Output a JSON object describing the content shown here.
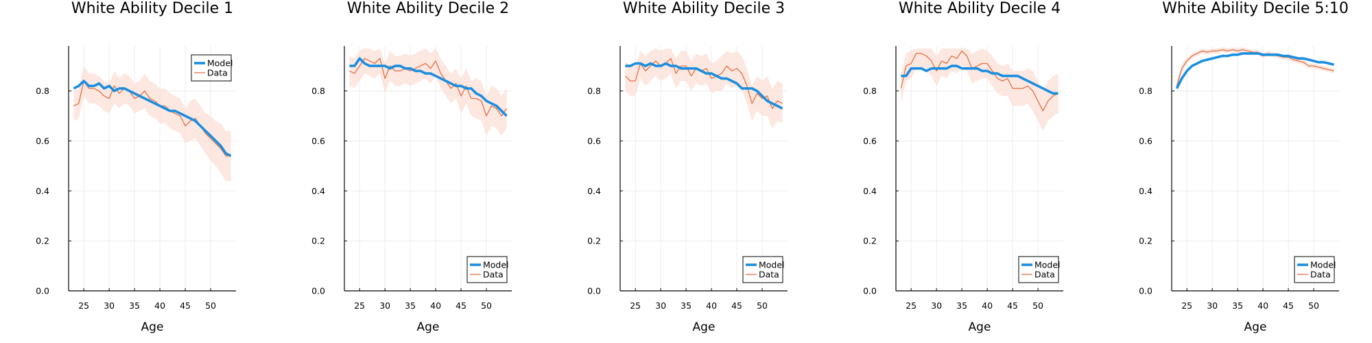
{
  "colors": {
    "model": "#1a8ee0",
    "data": "#e26f46",
    "band": "#fbe0d6",
    "grid": "#ececec",
    "axis": "#000000"
  },
  "chart_data": [
    {
      "type": "line",
      "title": "White Ability Decile 1",
      "xlabel": "Age",
      "ylabel": "",
      "xlim": [
        22,
        55
      ],
      "ylim": [
        0,
        0.98
      ],
      "xticks": [
        25,
        30,
        35,
        40,
        45,
        50
      ],
      "yticks": [
        0.0,
        0.2,
        0.4,
        0.6,
        0.8
      ],
      "grid": true,
      "legend": "top-right",
      "x": [
        23,
        24,
        25,
        26,
        27,
        28,
        29,
        30,
        31,
        32,
        33,
        34,
        35,
        36,
        37,
        38,
        39,
        40,
        41,
        42,
        43,
        44,
        45,
        46,
        47,
        48,
        49,
        50,
        51,
        52,
        53,
        54
      ],
      "series": [
        {
          "name": "Model",
          "values": [
            0.81,
            0.82,
            0.84,
            0.82,
            0.82,
            0.83,
            0.81,
            0.82,
            0.8,
            0.81,
            0.81,
            0.8,
            0.79,
            0.78,
            0.77,
            0.76,
            0.75,
            0.74,
            0.73,
            0.72,
            0.72,
            0.71,
            0.7,
            0.69,
            0.68,
            0.66,
            0.64,
            0.62,
            0.6,
            0.58,
            0.55,
            0.54
          ]
        },
        {
          "name": "Data",
          "values": [
            0.74,
            0.75,
            0.84,
            0.81,
            0.81,
            0.8,
            0.78,
            0.77,
            0.82,
            0.79,
            0.81,
            0.8,
            0.77,
            0.78,
            0.8,
            0.77,
            0.76,
            0.74,
            0.74,
            0.72,
            0.71,
            0.7,
            0.66,
            0.68,
            0.69,
            0.66,
            0.63,
            0.61,
            0.59,
            0.57,
            0.54,
            0.54
          ],
          "lower": [
            0.68,
            0.69,
            0.78,
            0.75,
            0.75,
            0.74,
            0.72,
            0.71,
            0.75,
            0.73,
            0.75,
            0.74,
            0.71,
            0.72,
            0.73,
            0.7,
            0.69,
            0.67,
            0.67,
            0.65,
            0.64,
            0.63,
            0.59,
            0.6,
            0.61,
            0.58,
            0.55,
            0.52,
            0.5,
            0.47,
            0.44,
            0.44
          ],
          "upper": [
            0.8,
            0.81,
            0.9,
            0.87,
            0.87,
            0.86,
            0.84,
            0.83,
            0.88,
            0.85,
            0.87,
            0.86,
            0.83,
            0.84,
            0.87,
            0.84,
            0.83,
            0.81,
            0.81,
            0.79,
            0.78,
            0.77,
            0.73,
            0.76,
            0.77,
            0.74,
            0.71,
            0.7,
            0.68,
            0.67,
            0.64,
            0.64
          ]
        }
      ]
    },
    {
      "type": "line",
      "title": "White Ability Decile 2",
      "xlabel": "Age",
      "ylabel": "",
      "xlim": [
        22,
        55
      ],
      "ylim": [
        0,
        0.98
      ],
      "xticks": [
        25,
        30,
        35,
        40,
        45,
        50
      ],
      "yticks": [
        0.0,
        0.2,
        0.4,
        0.6,
        0.8
      ],
      "grid": true,
      "legend": "bottom-right",
      "x": [
        23,
        24,
        25,
        26,
        27,
        28,
        29,
        30,
        31,
        32,
        33,
        34,
        35,
        36,
        37,
        38,
        39,
        40,
        41,
        42,
        43,
        44,
        45,
        46,
        47,
        48,
        49,
        50,
        51,
        52,
        53,
        54
      ],
      "series": [
        {
          "name": "Model",
          "values": [
            0.9,
            0.9,
            0.93,
            0.91,
            0.9,
            0.9,
            0.9,
            0.9,
            0.89,
            0.9,
            0.9,
            0.89,
            0.89,
            0.88,
            0.88,
            0.87,
            0.87,
            0.86,
            0.85,
            0.84,
            0.83,
            0.82,
            0.82,
            0.81,
            0.81,
            0.79,
            0.78,
            0.76,
            0.75,
            0.74,
            0.72,
            0.7
          ]
        },
        {
          "name": "Data",
          "values": [
            0.88,
            0.87,
            0.9,
            0.93,
            0.92,
            0.91,
            0.93,
            0.85,
            0.9,
            0.88,
            0.88,
            0.89,
            0.88,
            0.89,
            0.9,
            0.91,
            0.89,
            0.92,
            0.87,
            0.84,
            0.81,
            0.83,
            0.78,
            0.82,
            0.77,
            0.77,
            0.76,
            0.7,
            0.74,
            0.73,
            0.7,
            0.73
          ],
          "lower": [
            0.82,
            0.81,
            0.84,
            0.87,
            0.86,
            0.85,
            0.87,
            0.79,
            0.84,
            0.82,
            0.82,
            0.83,
            0.82,
            0.83,
            0.84,
            0.85,
            0.83,
            0.86,
            0.81,
            0.78,
            0.75,
            0.77,
            0.71,
            0.75,
            0.7,
            0.69,
            0.68,
            0.62,
            0.66,
            0.65,
            0.62,
            0.65
          ],
          "upper": [
            0.94,
            0.93,
            0.96,
            0.97,
            0.97,
            0.96,
            0.97,
            0.91,
            0.96,
            0.94,
            0.94,
            0.95,
            0.94,
            0.95,
            0.96,
            0.97,
            0.95,
            0.97,
            0.93,
            0.9,
            0.87,
            0.89,
            0.85,
            0.89,
            0.84,
            0.85,
            0.84,
            0.78,
            0.82,
            0.81,
            0.78,
            0.81
          ]
        }
      ]
    },
    {
      "type": "line",
      "title": "White Ability Decile 3",
      "xlabel": "Age",
      "ylabel": "",
      "xlim": [
        22,
        55
      ],
      "ylim": [
        0,
        0.98
      ],
      "xticks": [
        25,
        30,
        35,
        40,
        45,
        50
      ],
      "yticks": [
        0.0,
        0.2,
        0.4,
        0.6,
        0.8
      ],
      "grid": true,
      "legend": "bottom-right",
      "x": [
        23,
        24,
        25,
        26,
        27,
        28,
        29,
        30,
        31,
        32,
        33,
        34,
        35,
        36,
        37,
        38,
        39,
        40,
        41,
        42,
        43,
        44,
        45,
        46,
        47,
        48,
        49,
        50,
        51,
        52,
        53,
        54
      ],
      "series": [
        {
          "name": "Model",
          "values": [
            0.9,
            0.9,
            0.91,
            0.91,
            0.9,
            0.91,
            0.9,
            0.9,
            0.91,
            0.9,
            0.9,
            0.89,
            0.89,
            0.89,
            0.89,
            0.88,
            0.87,
            0.87,
            0.86,
            0.85,
            0.85,
            0.84,
            0.83,
            0.81,
            0.81,
            0.81,
            0.8,
            0.78,
            0.76,
            0.75,
            0.74,
            0.73
          ]
        },
        {
          "name": "Data",
          "values": [
            0.86,
            0.84,
            0.84,
            0.91,
            0.88,
            0.9,
            0.92,
            0.9,
            0.91,
            0.93,
            0.87,
            0.9,
            0.9,
            0.86,
            0.89,
            0.88,
            0.89,
            0.85,
            0.86,
            0.87,
            0.9,
            0.88,
            0.89,
            0.87,
            0.82,
            0.75,
            0.79,
            0.77,
            0.78,
            0.73,
            0.76,
            0.75
          ],
          "lower": [
            0.8,
            0.78,
            0.78,
            0.85,
            0.82,
            0.84,
            0.86,
            0.84,
            0.85,
            0.87,
            0.81,
            0.84,
            0.84,
            0.8,
            0.83,
            0.82,
            0.83,
            0.79,
            0.8,
            0.8,
            0.83,
            0.81,
            0.82,
            0.8,
            0.75,
            0.68,
            0.72,
            0.7,
            0.7,
            0.65,
            0.68,
            0.67
          ],
          "upper": [
            0.92,
            0.9,
            0.9,
            0.96,
            0.94,
            0.96,
            0.97,
            0.96,
            0.97,
            0.97,
            0.93,
            0.96,
            0.96,
            0.92,
            0.95,
            0.94,
            0.95,
            0.91,
            0.92,
            0.94,
            0.96,
            0.95,
            0.96,
            0.94,
            0.89,
            0.82,
            0.86,
            0.84,
            0.86,
            0.81,
            0.84,
            0.83
          ]
        }
      ]
    },
    {
      "type": "line",
      "title": "White Ability Decile 4",
      "xlabel": "Age",
      "ylabel": "",
      "xlim": [
        22,
        55
      ],
      "ylim": [
        0,
        0.98
      ],
      "xticks": [
        25,
        30,
        35,
        40,
        45,
        50
      ],
      "yticks": [
        0.0,
        0.2,
        0.4,
        0.6,
        0.8
      ],
      "grid": true,
      "legend": "bottom-right",
      "x": [
        23,
        24,
        25,
        26,
        27,
        28,
        29,
        30,
        31,
        32,
        33,
        34,
        35,
        36,
        37,
        38,
        39,
        40,
        41,
        42,
        43,
        44,
        45,
        46,
        47,
        48,
        49,
        50,
        51,
        52,
        53,
        54
      ],
      "series": [
        {
          "name": "Model",
          "values": [
            0.86,
            0.86,
            0.89,
            0.89,
            0.89,
            0.88,
            0.89,
            0.89,
            0.89,
            0.89,
            0.9,
            0.9,
            0.89,
            0.89,
            0.89,
            0.89,
            0.88,
            0.88,
            0.87,
            0.87,
            0.86,
            0.86,
            0.86,
            0.86,
            0.85,
            0.84,
            0.83,
            0.82,
            0.81,
            0.8,
            0.79,
            0.79
          ]
        },
        {
          "name": "Data",
          "values": [
            0.81,
            0.9,
            0.91,
            0.95,
            0.95,
            0.94,
            0.92,
            0.88,
            0.92,
            0.91,
            0.94,
            0.93,
            0.96,
            0.94,
            0.89,
            0.9,
            0.91,
            0.91,
            0.88,
            0.85,
            0.84,
            0.85,
            0.81,
            0.81,
            0.81,
            0.82,
            0.8,
            0.76,
            0.72,
            0.76,
            0.78,
            0.79
          ],
          "lower": [
            0.75,
            0.84,
            0.85,
            0.89,
            0.89,
            0.88,
            0.86,
            0.82,
            0.86,
            0.85,
            0.88,
            0.87,
            0.9,
            0.88,
            0.83,
            0.84,
            0.85,
            0.85,
            0.82,
            0.79,
            0.78,
            0.78,
            0.74,
            0.74,
            0.74,
            0.75,
            0.72,
            0.68,
            0.64,
            0.68,
            0.7,
            0.71
          ],
          "upper": [
            0.87,
            0.95,
            0.96,
            0.97,
            0.97,
            0.97,
            0.97,
            0.94,
            0.97,
            0.97,
            0.97,
            0.97,
            0.97,
            0.97,
            0.95,
            0.96,
            0.97,
            0.96,
            0.94,
            0.91,
            0.9,
            0.91,
            0.88,
            0.88,
            0.88,
            0.89,
            0.88,
            0.84,
            0.8,
            0.84,
            0.86,
            0.87
          ]
        }
      ]
    },
    {
      "type": "line",
      "title": "White Ability Decile 5:10",
      "xlabel": "Age",
      "ylabel": "",
      "xlim": [
        22,
        55
      ],
      "ylim": [
        0,
        0.98
      ],
      "xticks": [
        25,
        30,
        35,
        40,
        45,
        50
      ],
      "yticks": [
        0.0,
        0.2,
        0.4,
        0.6,
        0.8
      ],
      "grid": true,
      "legend": "bottom-right",
      "x": [
        23,
        24,
        25,
        26,
        27,
        28,
        29,
        30,
        31,
        32,
        33,
        34,
        35,
        36,
        37,
        38,
        39,
        40,
        41,
        42,
        43,
        44,
        45,
        46,
        47,
        48,
        49,
        50,
        51,
        52,
        53,
        54
      ],
      "series": [
        {
          "name": "Model",
          "values": [
            0.81,
            0.85,
            0.88,
            0.9,
            0.91,
            0.92,
            0.925,
            0.93,
            0.935,
            0.94,
            0.94,
            0.945,
            0.945,
            0.95,
            0.95,
            0.95,
            0.95,
            0.945,
            0.945,
            0.945,
            0.945,
            0.94,
            0.94,
            0.935,
            0.93,
            0.93,
            0.925,
            0.92,
            0.915,
            0.915,
            0.91,
            0.905
          ]
        },
        {
          "name": "Data",
          "values": [
            0.82,
            0.89,
            0.92,
            0.94,
            0.95,
            0.96,
            0.955,
            0.96,
            0.96,
            0.965,
            0.96,
            0.965,
            0.96,
            0.965,
            0.96,
            0.955,
            0.955,
            0.94,
            0.95,
            0.945,
            0.94,
            0.935,
            0.935,
            0.925,
            0.92,
            0.915,
            0.9,
            0.9,
            0.895,
            0.89,
            0.885,
            0.88
          ],
          "lower": [
            0.8,
            0.87,
            0.91,
            0.93,
            0.94,
            0.95,
            0.945,
            0.95,
            0.95,
            0.955,
            0.95,
            0.955,
            0.95,
            0.955,
            0.95,
            0.945,
            0.945,
            0.93,
            0.94,
            0.935,
            0.93,
            0.925,
            0.925,
            0.915,
            0.91,
            0.905,
            0.89,
            0.89,
            0.885,
            0.88,
            0.875,
            0.87
          ],
          "upper": [
            0.84,
            0.91,
            0.93,
            0.95,
            0.96,
            0.97,
            0.965,
            0.97,
            0.97,
            0.975,
            0.97,
            0.975,
            0.97,
            0.975,
            0.97,
            0.965,
            0.965,
            0.95,
            0.96,
            0.955,
            0.95,
            0.945,
            0.945,
            0.935,
            0.93,
            0.925,
            0.91,
            0.91,
            0.905,
            0.9,
            0.895,
            0.89
          ]
        }
      ]
    }
  ]
}
